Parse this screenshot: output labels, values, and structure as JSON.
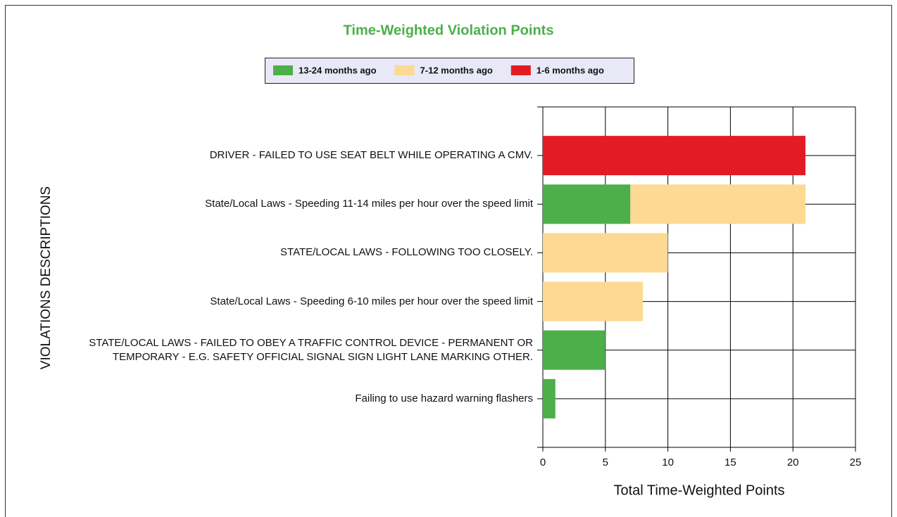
{
  "chart_data": {
    "type": "hbar-stacked",
    "title": "Time-Weighted Violation Points",
    "x_label": "Total Time-Weighted Points",
    "y_label": "VIOLATIONS DESCRIPTIONS",
    "categories": [
      "DRIVER - FAILED TO USE SEAT BELT WHILE OPERATING A CMV.",
      "State/Local Laws - Speeding 11-14 miles per hour over the speed limit",
      "STATE/LOCAL LAWS - FOLLOWING TOO CLOSELY.",
      "State/Local Laws - Speeding 6-10 miles per hour over the speed limit",
      "STATE/LOCAL LAWS - FAILED TO OBEY A TRAFFIC CONTROL DEVICE - PERMANENT OR TEMPORARY - E.G. SAFETY OFFICIAL SIGNAL SIGN LIGHT LANE MARKING OTHER.",
      "Failing to use hazard warning flashers"
    ],
    "series": [
      {
        "name": "13-24 months ago",
        "color": "#4caf4a",
        "values": [
          0,
          7,
          0,
          0,
          5,
          1
        ]
      },
      {
        "name": "7-12 months ago",
        "color": "#fdd993",
        "values": [
          0,
          14,
          10,
          8,
          0,
          0
        ]
      },
      {
        "name": "1-6 months ago",
        "color": "#e31b23",
        "values": [
          21,
          0,
          0,
          0,
          0,
          0
        ]
      }
    ],
    "xlim": [
      0,
      25
    ],
    "xticks": [
      0,
      5,
      10,
      15,
      20,
      25
    ],
    "grid": true,
    "legend": "top"
  }
}
